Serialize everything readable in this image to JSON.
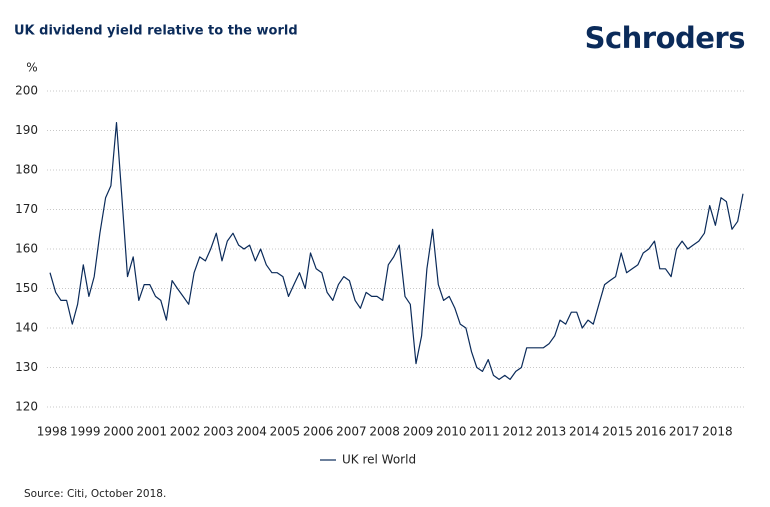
{
  "chart_data": {
    "type": "line",
    "title": "UK dividend yield relative to the world",
    "logo": "Schroders",
    "y_unit": "%",
    "source": "Source: Citi, October 2018.",
    "x": [
      1998,
      1998.17,
      1998.33,
      1998.5,
      1998.67,
      1998.83,
      1999,
      1999.17,
      1999.33,
      1999.5,
      1999.67,
      1999.83,
      2000,
      2000.17,
      2000.33,
      2000.5,
      2000.67,
      2000.83,
      2001,
      2001.17,
      2001.33,
      2001.5,
      2001.67,
      2001.83,
      2002,
      2002.17,
      2002.33,
      2002.5,
      2002.67,
      2002.83,
      2003,
      2003.17,
      2003.33,
      2003.5,
      2003.67,
      2003.83,
      2004,
      2004.17,
      2004.33,
      2004.5,
      2004.67,
      2004.83,
      2005,
      2005.17,
      2005.33,
      2005.5,
      2005.67,
      2005.83,
      2006,
      2006.17,
      2006.33,
      2006.5,
      2006.67,
      2006.83,
      2007,
      2007.17,
      2007.33,
      2007.5,
      2007.67,
      2007.83,
      2008,
      2008.17,
      2008.33,
      2008.5,
      2008.67,
      2008.83,
      2009,
      2009.17,
      2009.33,
      2009.5,
      2009.67,
      2009.83,
      2010,
      2010.17,
      2010.33,
      2010.5,
      2010.67,
      2010.83,
      2011,
      2011.17,
      2011.33,
      2011.5,
      2011.67,
      2011.83,
      2012,
      2012.17,
      2012.33,
      2012.5,
      2012.67,
      2012.83,
      2013,
      2013.17,
      2013.33,
      2013.5,
      2013.67,
      2013.83,
      2014,
      2014.17,
      2014.33,
      2014.5,
      2014.67,
      2014.83,
      2015,
      2015.17,
      2015.33,
      2015.5,
      2015.67,
      2015.83,
      2016,
      2016.17,
      2016.33,
      2016.5,
      2016.67,
      2016.83,
      2017,
      2017.17,
      2017.33,
      2017.5,
      2017.67,
      2017.83,
      2018,
      2018.17,
      2018.33,
      2018.5,
      2018.67,
      2018.83
    ],
    "series": [
      {
        "name": "UK rel World",
        "color": "#0b2b5a",
        "values": [
          154,
          149,
          147,
          147,
          141,
          146,
          156,
          148,
          153,
          164,
          173,
          176,
          192,
          172,
          153,
          158,
          147,
          151,
          151,
          148,
          147,
          142,
          152,
          150,
          148,
          146,
          154,
          158,
          157,
          160,
          164,
          157,
          162,
          164,
          161,
          160,
          161,
          157,
          160,
          156,
          154,
          154,
          153,
          148,
          151,
          154,
          150,
          159,
          155,
          154,
          149,
          147,
          151,
          153,
          152,
          147,
          145,
          149,
          148,
          148,
          147,
          156,
          158,
          161,
          148,
          146,
          131,
          138,
          155,
          165,
          151,
          147,
          148,
          145,
          141,
          140,
          134,
          130,
          129,
          132,
          128,
          127,
          128,
          127,
          129,
          130,
          135,
          135,
          135,
          135,
          136,
          138,
          142,
          141,
          144,
          144,
          140,
          142,
          141,
          146,
          151,
          152,
          153,
          159,
          154,
          155,
          156,
          159,
          160,
          162,
          155,
          155,
          153,
          160,
          162,
          160,
          161,
          162,
          164,
          171,
          166,
          173,
          172,
          165,
          167,
          174
        ]
      }
    ],
    "xlim": [
      1998,
      2018.83
    ],
    "xticks": [
      1998,
      1999,
      2000,
      2001,
      2002,
      2003,
      2004,
      2005,
      2006,
      2007,
      2008,
      2009,
      2010,
      2011,
      2012,
      2013,
      2014,
      2015,
      2016,
      2017,
      2018
    ],
    "ylim": [
      120,
      200
    ],
    "yticks": [
      120,
      130,
      140,
      150,
      160,
      170,
      180,
      190,
      200
    ],
    "grid": true
  }
}
